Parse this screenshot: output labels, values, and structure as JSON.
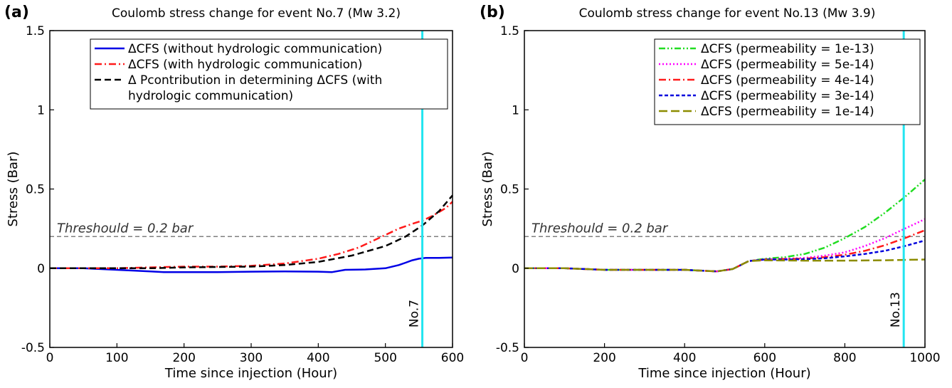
{
  "chart_data": [
    {
      "type": "line",
      "panel_label": "(a)",
      "title": "Coulomb stress change for event No.7 (Mw 3.2)",
      "xlabel": "Time since injection (Hour)",
      "ylabel": "Stress (Bar)",
      "xlim": [
        0,
        600
      ],
      "ylim": [
        -0.5,
        1.5
      ],
      "xticks": [
        "0",
        "100",
        "200",
        "300",
        "400",
        "500",
        "600"
      ],
      "yticks": [
        "-0.5",
        "0",
        "0.5",
        "1",
        "1.5"
      ],
      "grid": false,
      "legend_position": "top-right",
      "threshold": {
        "label": "Threshould = 0.2 bar",
        "value": 0.2,
        "color": "#808080"
      },
      "event_marker": {
        "label": "No.7",
        "x": 555,
        "color": "#22e5f0"
      },
      "series": [
        {
          "name": "ΔCFS (without hydrologic communication)",
          "color": "#0000e6",
          "style": "solid",
          "x": [
            0,
            50,
            100,
            150,
            170,
            200,
            250,
            300,
            350,
            400,
            420,
            440,
            470,
            500,
            520,
            530,
            540,
            550,
            560,
            580,
            600
          ],
          "y": [
            0,
            0,
            -0.01,
            -0.02,
            -0.025,
            -0.025,
            -0.025,
            -0.022,
            -0.02,
            -0.022,
            -0.025,
            -0.01,
            -0.008,
            0,
            0.02,
            0.035,
            0.05,
            0.06,
            0.065,
            0.065,
            0.067
          ]
        },
        {
          "name": "ΔCFS (with hydrologic communication)",
          "color": "#ff1a1a",
          "style": "dashdot",
          "x": [
            0,
            50,
            100,
            150,
            200,
            250,
            300,
            350,
            400,
            430,
            460,
            480,
            500,
            520,
            540,
            555,
            570,
            590,
            600
          ],
          "y": [
            0,
            0,
            0,
            0.005,
            0.01,
            0.01,
            0.015,
            0.03,
            0.06,
            0.09,
            0.13,
            0.17,
            0.21,
            0.25,
            0.28,
            0.3,
            0.33,
            0.38,
            0.42
          ]
        },
        {
          "name": "Δ Pcontribution in determining ΔCFS (with hydrologic communication)",
          "legend_lines": [
            "Δ Pcontribution in determining ΔCFS (with",
            "hydrologic communication)"
          ],
          "color": "#000000",
          "style": "dashed",
          "x": [
            0,
            50,
            100,
            150,
            200,
            250,
            300,
            350,
            400,
            450,
            500,
            530,
            555,
            580,
            600
          ],
          "y": [
            0,
            0,
            0,
            0,
            0.005,
            0.008,
            0.01,
            0.02,
            0.04,
            0.08,
            0.14,
            0.2,
            0.27,
            0.36,
            0.46
          ]
        }
      ]
    },
    {
      "type": "line",
      "panel_label": "(b)",
      "title": "Coulomb stress change for event No.13 (Mw 3.9)",
      "xlabel": "Time since injection (Hour)",
      "ylabel": "Stress (Bar)",
      "xlim": [
        0,
        1000
      ],
      "ylim": [
        -0.5,
        1.5
      ],
      "xticks": [
        "0",
        "200",
        "400",
        "600",
        "800",
        "1000"
      ],
      "yticks": [
        "-0.5",
        "0",
        "0.5",
        "1",
        "1.5"
      ],
      "grid": false,
      "legend_position": "top-right",
      "threshold": {
        "label": "Threshould = 0.2 bar",
        "value": 0.2,
        "color": "#808080"
      },
      "event_marker": {
        "label": "No.13",
        "x": 947,
        "color": "#22e5f0"
      },
      "series": [
        {
          "name": "ΔCFS (permeability = 1e-13)",
          "color": "#22dd22",
          "style": "dashdotdot",
          "x": [
            0,
            100,
            200,
            300,
            400,
            480,
            520,
            560,
            600,
            650,
            700,
            750,
            800,
            850,
            900,
            950,
            1000
          ],
          "y": [
            0,
            0,
            -0.01,
            -0.01,
            -0.01,
            -0.02,
            -0.005,
            0.045,
            0.06,
            0.07,
            0.09,
            0.13,
            0.19,
            0.26,
            0.35,
            0.45,
            0.56
          ]
        },
        {
          "name": "ΔCFS (permeability = 5e-14)",
          "color": "#ff00ff",
          "style": "dotted",
          "x": [
            0,
            100,
            200,
            300,
            400,
            480,
            520,
            560,
            600,
            650,
            700,
            750,
            800,
            850,
            900,
            950,
            1000
          ],
          "y": [
            0,
            0,
            -0.01,
            -0.01,
            -0.01,
            -0.02,
            -0.005,
            0.045,
            0.055,
            0.06,
            0.065,
            0.08,
            0.1,
            0.14,
            0.19,
            0.25,
            0.31
          ]
        },
        {
          "name": "ΔCFS (permeability = 4e-14)",
          "color": "#ff1a1a",
          "style": "dashdot",
          "x": [
            0,
            100,
            200,
            300,
            400,
            480,
            520,
            560,
            600,
            650,
            700,
            750,
            800,
            850,
            900,
            950,
            1000
          ],
          "y": [
            0,
            0,
            -0.01,
            -0.01,
            -0.01,
            -0.02,
            -0.005,
            0.045,
            0.055,
            0.058,
            0.06,
            0.07,
            0.085,
            0.11,
            0.145,
            0.19,
            0.24
          ]
        },
        {
          "name": "ΔCFS (permeability = 3e-14)",
          "color": "#0000dd",
          "style": "shortdash",
          "x": [
            0,
            100,
            200,
            300,
            400,
            480,
            520,
            560,
            600,
            650,
            700,
            750,
            800,
            850,
            900,
            950,
            1000
          ],
          "y": [
            0,
            0,
            -0.01,
            -0.01,
            -0.01,
            -0.02,
            -0.005,
            0.045,
            0.055,
            0.055,
            0.057,
            0.063,
            0.075,
            0.09,
            0.11,
            0.14,
            0.175
          ]
        },
        {
          "name": "ΔCFS (permeability = 1e-14)",
          "color": "#8c8c00",
          "style": "longdash",
          "x": [
            0,
            100,
            200,
            300,
            400,
            480,
            520,
            560,
            600,
            700,
            800,
            900,
            1000
          ],
          "y": [
            0,
            0,
            -0.01,
            -0.01,
            -0.01,
            -0.02,
            -0.005,
            0.045,
            0.05,
            0.048,
            0.048,
            0.05,
            0.055
          ]
        }
      ]
    }
  ]
}
